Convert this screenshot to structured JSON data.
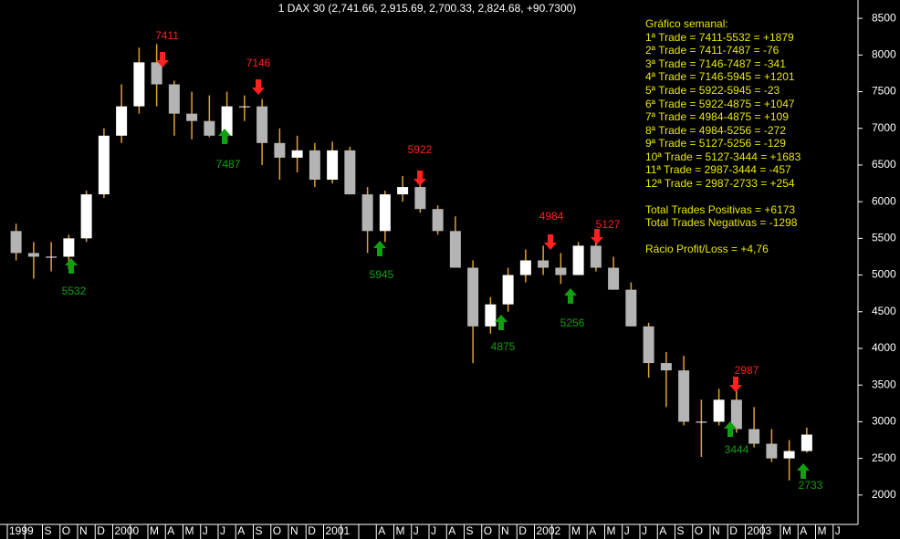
{
  "chart_data": {
    "type": "candlestick",
    "title": "1 DAX 30 (2,741.66, 2,915.69, 2,700.33, 2,824.68, +90.7300)",
    "categories": [
      "1999",
      null,
      "S",
      "O",
      "N",
      "D",
      "2000",
      null,
      "M",
      "A",
      "M",
      "J",
      "J",
      "A",
      "S",
      "O",
      "N",
      "D",
      "2001",
      null,
      null,
      "A",
      "M",
      "J",
      "J",
      "A",
      "S",
      "O",
      "N",
      "D",
      "2002",
      null,
      "M",
      "A",
      "M",
      "J",
      "J",
      "A",
      "S",
      "O",
      "N",
      "D",
      "2003",
      null,
      "M",
      "A",
      "M",
      "J"
    ],
    "open": [
      5600,
      5300,
      5250,
      5250,
      5500,
      6100,
      6900,
      7300,
      7900,
      7600,
      7200,
      7100,
      6900,
      7300,
      7300,
      6800,
      6600,
      6700,
      6300,
      6700,
      6100,
      5600,
      6100,
      6200,
      5900,
      5600,
      5100,
      4300,
      4600,
      5000,
      5200,
      5100,
      5000,
      5400,
      5100,
      4800,
      4300,
      3800,
      3700,
      3000,
      3000,
      3300,
      2900,
      2700,
      2500,
      2600,
      null,
      null
    ],
    "high": [
      5700,
      5450,
      5450,
      5550,
      6150,
      7000,
      7600,
      8100,
      8150,
      7650,
      7500,
      7450,
      7500,
      7450,
      7400,
      7000,
      6900,
      6800,
      6820,
      6750,
      6200,
      6150,
      6350,
      6350,
      5950,
      5800,
      5200,
      4700,
      5100,
      5350,
      5400,
      5300,
      5450,
      5450,
      5250,
      4900,
      4350,
      3950,
      3900,
      3300,
      3450,
      3500,
      3200,
      2900,
      2750,
      2920,
      null,
      null
    ],
    "low": [
      5200,
      4950,
      5050,
      5080,
      5450,
      6050,
      6800,
      7200,
      7300,
      6900,
      6850,
      6880,
      6800,
      7100,
      6500,
      6300,
      6400,
      6200,
      6250,
      6100,
      5300,
      5450,
      6000,
      5850,
      5550,
      5100,
      3800,
      4200,
      4500,
      4900,
      5000,
      4880,
      5000,
      5050,
      4800,
      4300,
      3600,
      3200,
      2950,
      2520,
      2950,
      2850,
      2650,
      2450,
      2200,
      2580,
      null,
      null
    ],
    "close": [
      5300,
      5250,
      5250,
      5500,
      6100,
      6900,
      7300,
      7900,
      7600,
      7200,
      7100,
      6900,
      7300,
      7300,
      6800,
      6600,
      6700,
      6300,
      6700,
      6100,
      5600,
      6100,
      6200,
      5900,
      5600,
      5100,
      4300,
      4600,
      5000,
      5200,
      5100,
      5000,
      5400,
      5100,
      4800,
      4300,
      3800,
      3700,
      3000,
      3000,
      3300,
      2900,
      2700,
      2500,
      2600,
      2824.68,
      null,
      null
    ],
    "up_color": "#ffffff",
    "down_color": "#b4b4b4",
    "wick_color": "#e0a030",
    "ylim": [
      1600,
      8750
    ],
    "yticks": [
      2000,
      2500,
      3000,
      3500,
      4000,
      4500,
      5000,
      5500,
      6000,
      6500,
      7000,
      7500,
      8000,
      8500
    ],
    "grid": false,
    "annotations": [
      {
        "text": "7411",
        "direction": "down",
        "color": "#ff2020"
      },
      {
        "text": "7146",
        "direction": "down",
        "color": "#ff2020"
      },
      {
        "text": "5922",
        "direction": "down",
        "color": "#ff2020"
      },
      {
        "text": "4984",
        "direction": "down",
        "color": "#ff2020"
      },
      {
        "text": "5127",
        "direction": "down",
        "color": "#ff2020"
      },
      {
        "text": "2987",
        "direction": "down",
        "color": "#ff2020"
      },
      {
        "text": "5532",
        "direction": "up",
        "color": "#10a010"
      },
      {
        "text": "7487",
        "direction": "up",
        "color": "#10a010"
      },
      {
        "text": "5945",
        "direction": "up",
        "color": "#10a010"
      },
      {
        "text": "4875",
        "direction": "up",
        "color": "#10a010"
      },
      {
        "text": "5256",
        "direction": "up",
        "color": "#10a010"
      },
      {
        "text": "3444",
        "direction": "up",
        "color": "#10a010"
      },
      {
        "text": "2733",
        "direction": "up",
        "color": "#10a010"
      }
    ],
    "notes_color": "#e8e800",
    "notes": [
      "Gráfico semanal:",
      "1ª Trade = 7411-5532 = +1879",
      "2ª Trade = 7411-7487 = -76",
      "3ª Trade = 7146-7487 = -341",
      "4ª Trade = 7146-5945 = +1201",
      "5ª Trade = 5922-5945 = -23",
      "6ª Trade = 5922-4875 = +1047",
      "7ª Trade = 4984-4875 = +109",
      "8ª Trade = 4984-5256 = -272",
      "9ª Trade = 5127-5256 = -129",
      "10ª Trade = 5127-3444 = +1683",
      "11ª Trade = 2987-3444 = -457",
      "12ª Trade = 2987-2733 = +254",
      "Total Trades Positivas = +6173",
      "Total Trades Negativas = -1298",
      "Rácio Profit/Loss = +4,76"
    ]
  }
}
